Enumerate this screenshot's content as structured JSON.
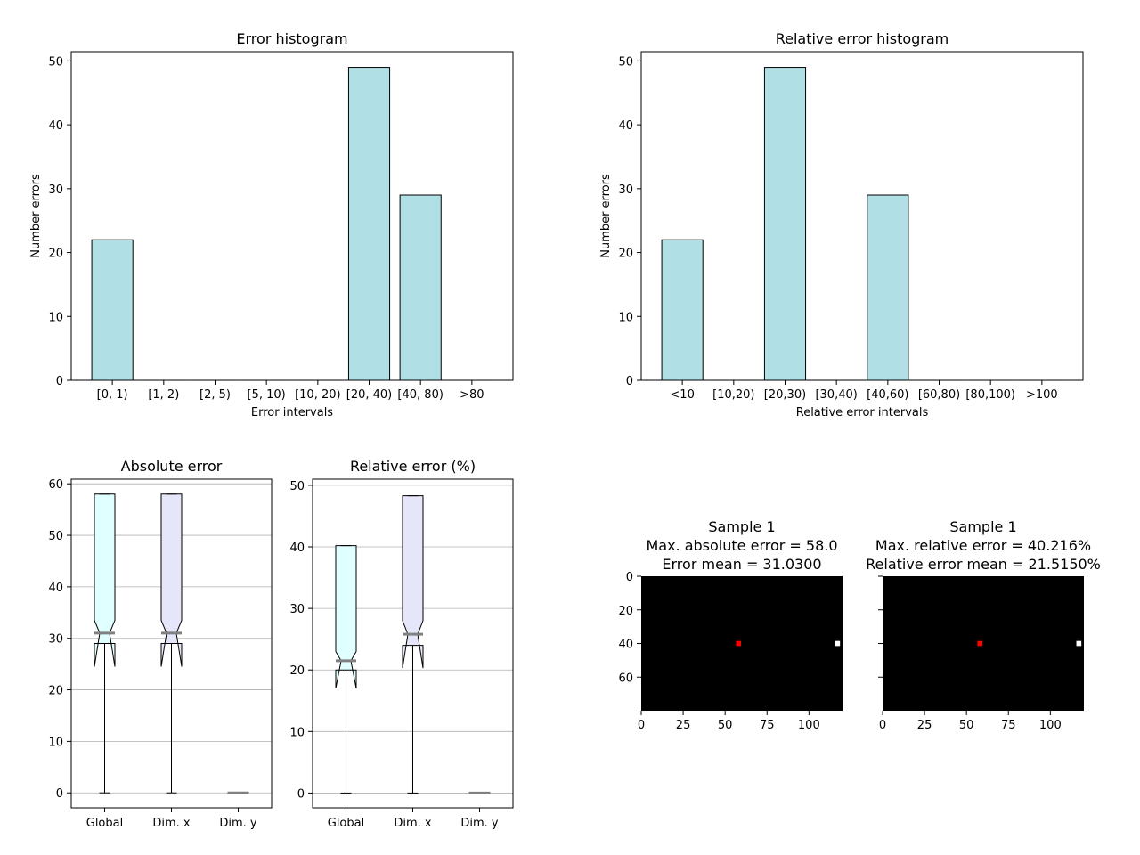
{
  "chart_data": [
    {
      "type": "bar",
      "title": "Error histogram",
      "xlabel": "Error intervals",
      "ylabel": "Number errors",
      "categories": [
        "[0, 1)",
        "[1, 2)",
        "[2, 5)",
        "[5, 10)",
        "[10, 20)",
        "[20, 40)",
        "[40, 80)",
        ">80"
      ],
      "values": [
        22,
        0,
        0,
        0,
        0,
        49,
        29,
        0
      ],
      "ylim": [
        0,
        51.45
      ],
      "yticks": [
        0,
        10,
        20,
        30,
        40,
        50
      ],
      "color": "#b0e0e6"
    },
    {
      "type": "bar",
      "title": "Relative error histogram",
      "xlabel": "Relative error intervals",
      "ylabel": "Number errors",
      "categories": [
        "<10",
        "[10,20)",
        "[20,30)",
        "[30,40)",
        "[40,60)",
        "[60,80)",
        "[80,100)",
        ">100"
      ],
      "values": [
        22,
        0,
        49,
        0,
        29,
        0,
        0,
        0
      ],
      "ylim": [
        0,
        51.45
      ],
      "yticks": [
        0,
        10,
        20,
        30,
        40,
        50
      ],
      "color": "#b0e0e6"
    },
    {
      "type": "box",
      "title": "Absolute error",
      "categories": [
        "Global",
        "Dim. x",
        "Dim. y"
      ],
      "ylim": [
        -2.9,
        60.9
      ],
      "yticks": [
        0,
        10,
        20,
        30,
        40,
        50,
        60
      ],
      "grid": true,
      "boxes": [
        {
          "whislo": 0,
          "q1": 29,
          "med": 31,
          "q3": 58,
          "whishi": 58,
          "notch_lo": 24.5,
          "notch_hi": 33.5,
          "color": "#e0ffff"
        },
        {
          "whislo": 0,
          "q1": 29,
          "med": 31,
          "q3": 58,
          "whishi": 58,
          "notch_lo": 24.5,
          "notch_hi": 33.5,
          "color": "#e6e6fa"
        },
        {
          "whislo": 0,
          "q1": 0,
          "med": 0,
          "q3": 0,
          "whishi": 0,
          "notch_lo": 0,
          "notch_hi": 0,
          "color": "#ffffff"
        }
      ]
    },
    {
      "type": "box",
      "title": "Relative error (%)",
      "categories": [
        "Global",
        "Dim. x",
        "Dim. y"
      ],
      "ylim": [
        -2.4,
        51.0
      ],
      "yticks": [
        0,
        10,
        20,
        30,
        40,
        50
      ],
      "grid": true,
      "boxes": [
        {
          "whislo": 0,
          "q1": 20,
          "med": 21.5,
          "q3": 40.2,
          "whishi": 40.2,
          "notch_lo": 17,
          "notch_hi": 23,
          "color": "#e0ffff"
        },
        {
          "whislo": 0,
          "q1": 24,
          "med": 25.8,
          "q3": 48.3,
          "whishi": 48.3,
          "notch_lo": 20.3,
          "notch_hi": 28,
          "color": "#e6e6fa"
        },
        {
          "whislo": 0,
          "q1": 0,
          "med": 0,
          "q3": 0,
          "whishi": 0,
          "notch_lo": 0,
          "notch_hi": 0,
          "color": "#ffffff"
        }
      ]
    },
    {
      "type": "heatmap",
      "title_lines": [
        "Sample 1",
        "Max. absolute error = 58.0",
        "Error mean = 31.0300"
      ],
      "xlim": [
        0,
        120
      ],
      "ylim": [
        80,
        0
      ],
      "xticks": [
        0,
        25,
        50,
        75,
        100
      ],
      "yticks": [
        0,
        20,
        40,
        60
      ],
      "background": "#000000",
      "points": [
        {
          "x": 58,
          "y": 40,
          "color": "#ff0000"
        },
        {
          "x": 117,
          "y": 40,
          "color": "#ffffff"
        }
      ]
    },
    {
      "type": "heatmap",
      "title_lines": [
        "Sample 1",
        "Max. relative error = 40.216%",
        "Relative error mean = 21.5150%"
      ],
      "xlim": [
        0,
        120
      ],
      "ylim": [
        80,
        0
      ],
      "xticks": [
        0,
        25,
        50,
        75,
        100
      ],
      "yticks": [
        0,
        20,
        40,
        60
      ],
      "show_ytick_labels": false,
      "background": "#000000",
      "points": [
        {
          "x": 58,
          "y": 40,
          "color": "#ff0000"
        },
        {
          "x": 117,
          "y": 40,
          "color": "#ffffff"
        }
      ]
    }
  ]
}
